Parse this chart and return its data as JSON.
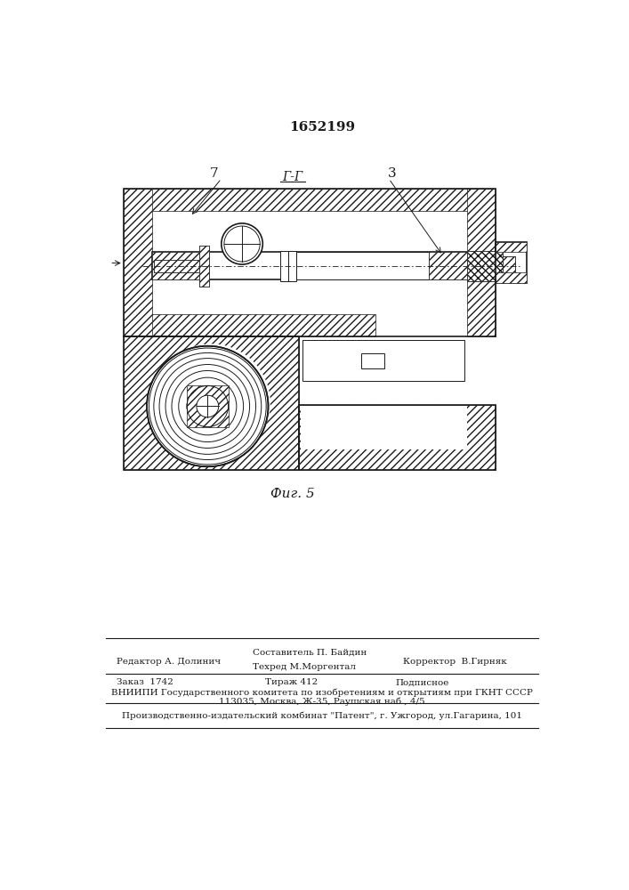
{
  "title": "1652199",
  "fig_label": "Фиг. 5",
  "label_7": "7",
  "label_3": "3",
  "label_gg": "Г-Г",
  "footer_line1_col1": "Редактор А. Долинич",
  "footer_line1_col2a": "Составитель П. Байдин",
  "footer_line1_col2b": "Техред М.Моргентал",
  "footer_line1_col3": "Корректор  В.Гирняк",
  "footer_line2_col1": "Заказ  1742",
  "footer_line2_col2": "Тираж 412",
  "footer_line2_col3": "Подписное",
  "footer_line3": "ВНИИПИ Государственного комитета по изобретениям и открытиям при ГКНТ СССР",
  "footer_line4": "113035, Москва, Ж-35, Раушская наб., 4/5",
  "footer_line5": "Производственно-издательский комбинат \"Патент\", г. Ужгород, ул.Гагарина, 101",
  "line_color": "#1a1a1a",
  "title_fontsize": 11,
  "label_fontsize": 10,
  "footer_fontsize": 7.5
}
